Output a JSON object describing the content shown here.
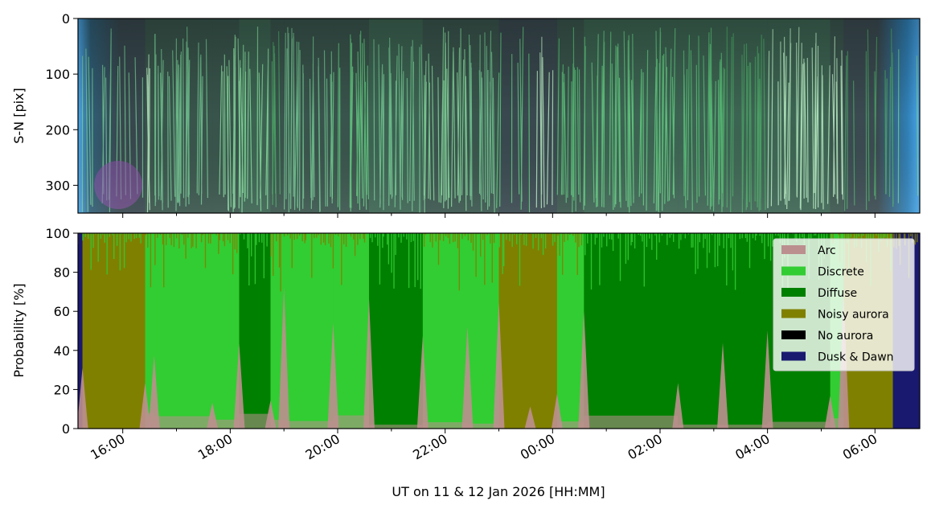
{
  "chart_data": [
    {
      "type": "heatmap",
      "content": "keogram",
      "ylabel": "S-N [pix]",
      "ylim": [
        350,
        0
      ],
      "yticks": [
        0,
        100,
        200,
        300
      ],
      "colors": {
        "twilight": "#4aa6e8",
        "night": "#2e3a40",
        "green_aurora": "#5fcf7f",
        "bright_aurora": "#c8ffd0",
        "purple_aurora": "#8a4aa8"
      }
    },
    {
      "type": "area",
      "stacked": true,
      "xlabel": "UT on 11 & 12 Jan 2026 [HH:MM]",
      "ylabel": "Probability [%]",
      "xlim": [
        "15:10",
        "06:50"
      ],
      "ylim": [
        0,
        100
      ],
      "xticks": [
        "16:00",
        "18:00",
        "20:00",
        "22:00",
        "00:00",
        "02:00",
        "04:00",
        "06:00"
      ],
      "yticks": [
        0,
        20,
        40,
        60,
        80,
        100
      ],
      "legend_location": "upper right",
      "series": [
        {
          "name": "Arc",
          "color": "#bc8f8f"
        },
        {
          "name": "Discrete",
          "color": "#32cd32"
        },
        {
          "name": "Diffuse",
          "color": "#008000"
        },
        {
          "name": "Noisy aurora",
          "color": "#808000"
        },
        {
          "name": "No aurora",
          "color": "#000000"
        },
        {
          "name": "Dusk & Dawn",
          "color": "#191970"
        }
      ],
      "dominant_class_segments": [
        {
          "start": "15:10",
          "end": "15:15",
          "class": "Dusk & Dawn"
        },
        {
          "start": "15:15",
          "end": "16:25",
          "class": "Noisy aurora"
        },
        {
          "start": "16:25",
          "end": "16:35",
          "class": "Discrete"
        },
        {
          "start": "16:35",
          "end": "17:40",
          "class": "Discrete"
        },
        {
          "start": "17:40",
          "end": "18:10",
          "class": "Discrete"
        },
        {
          "start": "18:10",
          "end": "18:45",
          "class": "Diffuse"
        },
        {
          "start": "18:45",
          "end": "19:00",
          "class": "Discrete"
        },
        {
          "start": "19:00",
          "end": "19:55",
          "class": "Discrete"
        },
        {
          "start": "19:55",
          "end": "20:35",
          "class": "Discrete"
        },
        {
          "start": "20:35",
          "end": "21:35",
          "class": "Diffuse"
        },
        {
          "start": "21:35",
          "end": "22:25",
          "class": "Discrete"
        },
        {
          "start": "22:25",
          "end": "23:00",
          "class": "Discrete"
        },
        {
          "start": "23:00",
          "end": "23:35",
          "class": "Noisy aurora"
        },
        {
          "start": "23:35",
          "end": "00:05",
          "class": "Noisy aurora"
        },
        {
          "start": "00:05",
          "end": "00:35",
          "class": "Discrete"
        },
        {
          "start": "00:35",
          "end": "02:20",
          "class": "Diffuse"
        },
        {
          "start": "02:20",
          "end": "03:10",
          "class": "Diffuse"
        },
        {
          "start": "03:10",
          "end": "04:00",
          "class": "Diffuse"
        },
        {
          "start": "04:00",
          "end": "05:10",
          "class": "Diffuse"
        },
        {
          "start": "05:10",
          "end": "05:25",
          "class": "Discrete"
        },
        {
          "start": "05:25",
          "end": "06:20",
          "class": "Noisy aurora"
        },
        {
          "start": "06:20",
          "end": "06:50",
          "class": "Dusk & Dawn"
        }
      ]
    }
  ]
}
